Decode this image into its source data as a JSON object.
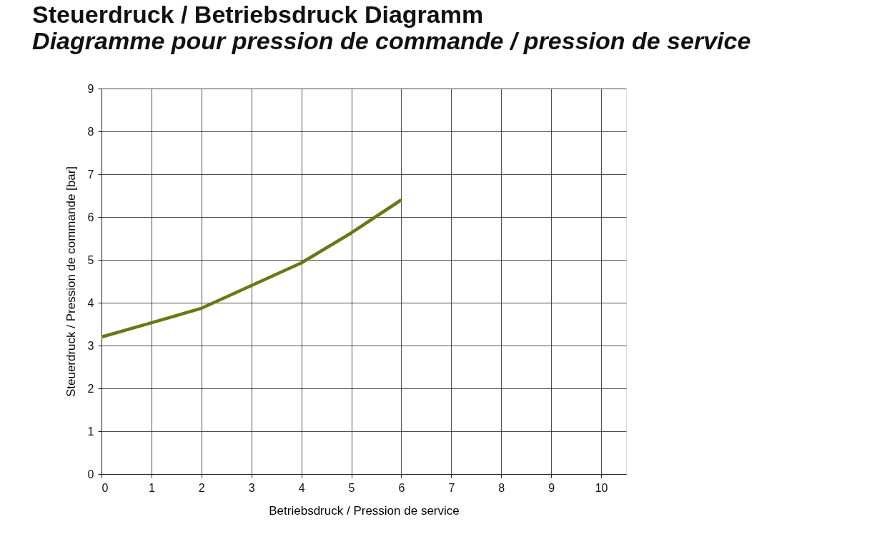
{
  "chart_data": {
    "type": "line",
    "title": "Steuerdruck / Betriebsdruck Diagramm",
    "subtitle": "Diagramme pour pression de commande / pression de service",
    "xlabel": "Betriebsdruck / Pression de service",
    "ylabel": "Steuerdruck / Pression de commande [bar]",
    "x": [
      0,
      1,
      2,
      3,
      4,
      5,
      6
    ],
    "series": [
      {
        "color": "#667a14",
        "values": [
          3.2,
          3.53,
          3.87,
          4.4,
          4.93,
          5.63,
          6.4
        ]
      }
    ],
    "xlim": [
      0,
      10.5
    ],
    "xticks": [
      0,
      1,
      2,
      3,
      4,
      5,
      6,
      7,
      8,
      9,
      10
    ],
    "ylim": [
      0,
      9
    ],
    "yticks": [
      0,
      1,
      2,
      3,
      4,
      5,
      6,
      7,
      8,
      9
    ],
    "grid": true,
    "legend": false,
    "marker": "none",
    "line_style": "solid"
  }
}
